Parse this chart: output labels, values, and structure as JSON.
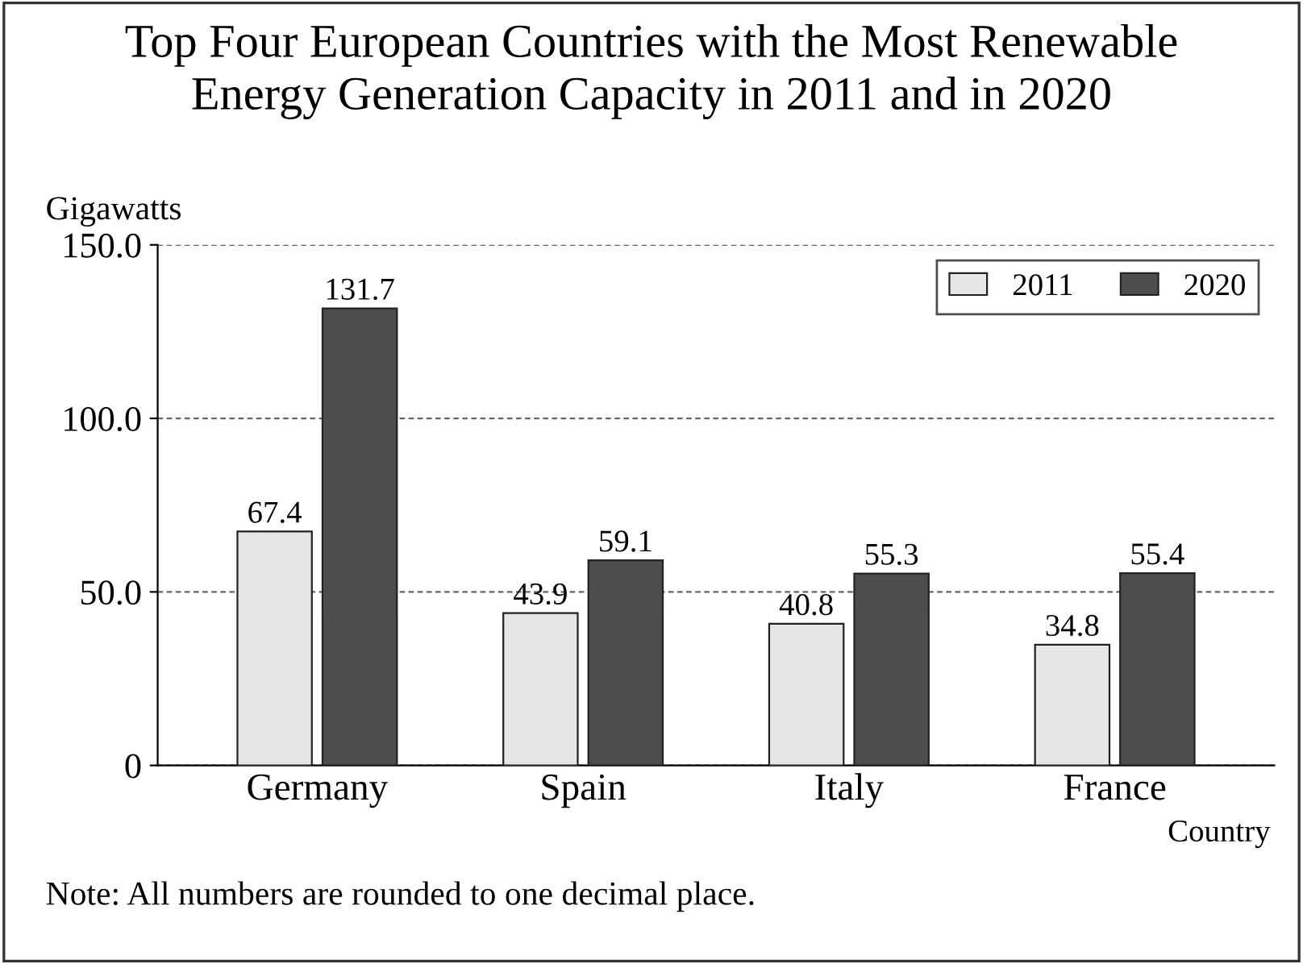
{
  "chart_data": {
    "type": "bar",
    "title": "Top Four European Countries with the Most Renewable\nEnergy Generation Capacity in 2011 and in 2020",
    "ylabel": "Gigawatts",
    "xlabel": "Country",
    "categories": [
      "Germany",
      "Spain",
      "Italy",
      "France"
    ],
    "series": [
      {
        "name": "2011",
        "color": "#e6e6e6",
        "values": [
          67.4,
          43.9,
          40.8,
          34.8
        ]
      },
      {
        "name": "2020",
        "color": "#4d4d4d",
        "values": [
          131.7,
          59.1,
          55.3,
          55.4
        ]
      }
    ],
    "ylim": [
      0,
      150
    ],
    "yticks": [
      {
        "value": 0,
        "label": "0"
      },
      {
        "value": 50,
        "label": "50.0"
      },
      {
        "value": 100,
        "label": "100.0"
      },
      {
        "value": 150,
        "label": "150.0"
      }
    ],
    "grid": "y",
    "legend": "top right",
    "data_labels": true,
    "annotations": [
      "Note: All numbers are rounded to one decimal place."
    ]
  }
}
